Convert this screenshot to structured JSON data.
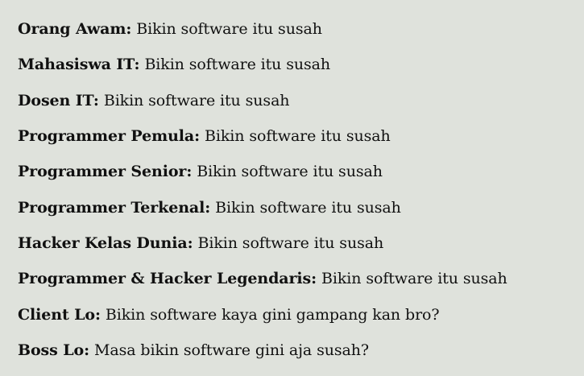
{
  "lines": [
    {
      "speaker": "Orang Awam:",
      "quote": "Bikin software itu susah"
    },
    {
      "speaker": "Mahasiswa IT:",
      "quote": "Bikin software itu susah"
    },
    {
      "speaker": "Dosen IT:",
      "quote": "Bikin software itu susah"
    },
    {
      "speaker": "Programmer Pemula:",
      "quote": "Bikin software itu susah"
    },
    {
      "speaker": "Programmer Senior:",
      "quote": "Bikin software itu susah"
    },
    {
      "speaker": "Programmer Terkenal:",
      "quote": "Bikin software itu susah"
    },
    {
      "speaker": "Hacker Kelas Dunia:",
      "quote": "Bikin software itu susah"
    },
    {
      "speaker": "Programmer & Hacker Legendaris:",
      "quote": "Bikin software itu susah"
    },
    {
      "speaker": "Client Lo:",
      "quote": "Bikin software kaya gini gampang kan bro?"
    },
    {
      "speaker": "Boss Lo:",
      "quote": "Masa bikin software gini aja susah?"
    }
  ]
}
